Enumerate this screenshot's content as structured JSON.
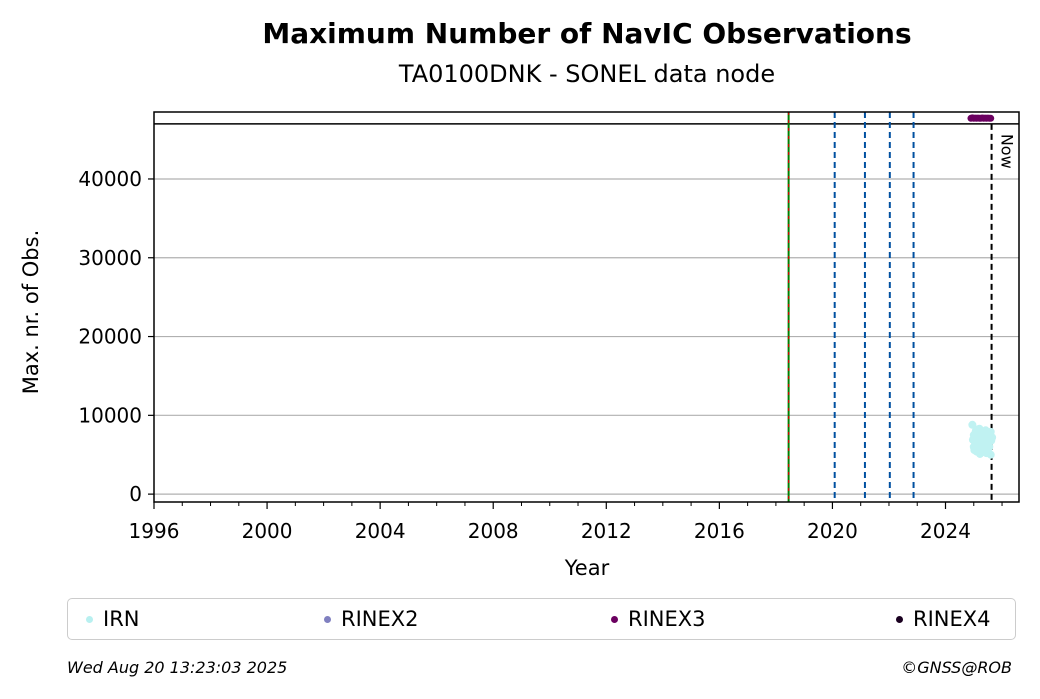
{
  "chart_data": {
    "type": "scatter",
    "title": "Maximum Number of NavIC Observations",
    "subtitle": "TA0100DNK - SONEL data node",
    "xlabel": "Year",
    "ylabel": "Max. nr. of Obs.",
    "xlim": [
      1996,
      2026.6
    ],
    "ylim": [
      -1000,
      48500
    ],
    "x_ticks": [
      1996,
      2000,
      2004,
      2008,
      2012,
      2016,
      2020,
      2024
    ],
    "y_ticks": [
      0,
      10000,
      20000,
      30000,
      40000
    ],
    "grid": "horizontal",
    "hline": 47000,
    "vlines": [
      {
        "x": 2018.45,
        "style": "green-red-dashed"
      },
      {
        "x": 2020.08,
        "style": "blue-dashed"
      },
      {
        "x": 2021.15,
        "style": "blue-dashed"
      },
      {
        "x": 2022.03,
        "style": "blue-dashed"
      },
      {
        "x": 2022.87,
        "style": "blue-dashed"
      },
      {
        "x": 2025.63,
        "style": "black-dashed",
        "label": "Now"
      }
    ],
    "series": [
      {
        "name": "IRN",
        "color": "#c0f2f2",
        "legend_color": "#b8f0f0",
        "x": [
          2024.95,
          2025.0,
          2025.05,
          2025.1,
          2025.15,
          2025.2,
          2025.25,
          2025.3,
          2025.35,
          2025.4,
          2025.45,
          2025.5,
          2025.55,
          2025.6,
          2025.65,
          2024.97,
          2025.02,
          2025.07,
          2025.12,
          2025.17,
          2025.22,
          2025.27,
          2025.32,
          2025.37,
          2025.42,
          2025.47,
          2025.52,
          2025.57,
          2025.62,
          2025.0,
          2025.1,
          2025.2,
          2025.3,
          2025.4,
          2025.5,
          2025.6
        ],
        "y": [
          8800,
          7500,
          6400,
          8200,
          5800,
          7000,
          6200,
          5500,
          7800,
          6600,
          5200,
          7400,
          6000,
          7900,
          7200,
          6900,
          5600,
          8000,
          6300,
          7600,
          5100,
          6700,
          7300,
          5900,
          8100,
          6500,
          5300,
          7100,
          6800,
          6000,
          5400,
          8300,
          5700,
          7700,
          6100,
          5000
        ]
      },
      {
        "name": "RINEX2",
        "color": "#8080c0",
        "x": [],
        "y": []
      },
      {
        "name": "RINEX3",
        "color": "#6b0060",
        "x": [
          2024.9,
          2024.95,
          2025.0,
          2025.05,
          2025.1,
          2025.15,
          2025.2,
          2025.25,
          2025.3,
          2025.35,
          2025.4,
          2025.45,
          2025.5,
          2025.55,
          2025.6
        ],
        "y": [
          47700,
          47750,
          47700,
          47720,
          47700,
          47730,
          47710,
          47700,
          47740,
          47700,
          47720,
          47700,
          47730,
          47710,
          47700
        ]
      },
      {
        "name": "RINEX4",
        "color": "#1a0020",
        "x": [],
        "y": []
      }
    ],
    "legend_placement": "below"
  },
  "footer": {
    "timestamp": "Wed Aug 20 13:23:03 2025",
    "credit": "©GNSS@ROB"
  }
}
